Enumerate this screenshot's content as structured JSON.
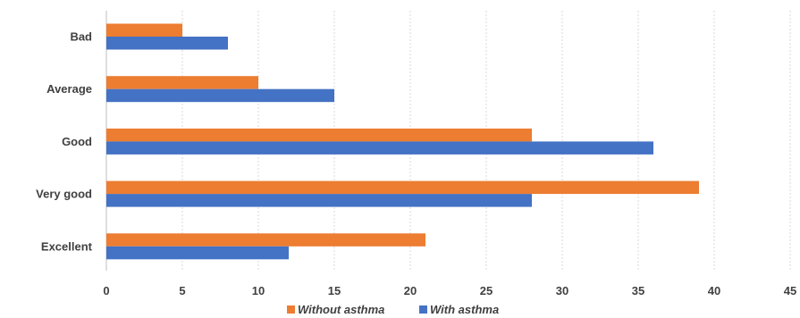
{
  "chart_data": {
    "type": "bar",
    "orientation": "horizontal",
    "categories": [
      "Bad",
      "Average",
      "Good",
      "Very good",
      "Excellent"
    ],
    "series": [
      {
        "name": "Without asthma",
        "color": "#ED7D31",
        "values": [
          5,
          10,
          28,
          39,
          21
        ]
      },
      {
        "name": "With asthma",
        "color": "#4472C4",
        "values": [
          8,
          15,
          36,
          28,
          12
        ]
      }
    ],
    "xlim": [
      0,
      45
    ],
    "xticks": [
      "0",
      "5",
      "10",
      "15",
      "20",
      "25",
      "30",
      "35",
      "40",
      "45"
    ],
    "grid": true,
    "legend": "bottom"
  }
}
